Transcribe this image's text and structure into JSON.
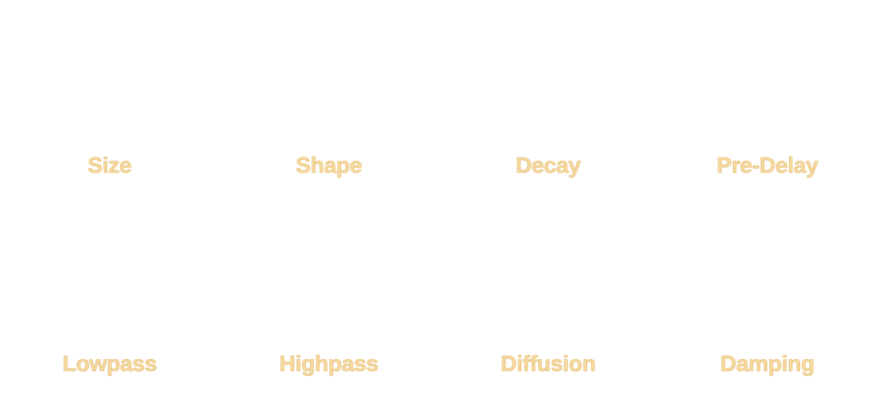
{
  "knobs": [
    {
      "label": "Size"
    },
    {
      "label": "Shape"
    },
    {
      "label": "Decay"
    },
    {
      "label": "Pre-Delay"
    },
    {
      "label": "Lowpass"
    },
    {
      "label": "Highpass"
    },
    {
      "label": "Diffusion"
    },
    {
      "label": "Damping"
    }
  ],
  "colors": {
    "label_fill": "#f5d9a0",
    "label_stroke": "#e3b869",
    "background": "#ffffff"
  }
}
